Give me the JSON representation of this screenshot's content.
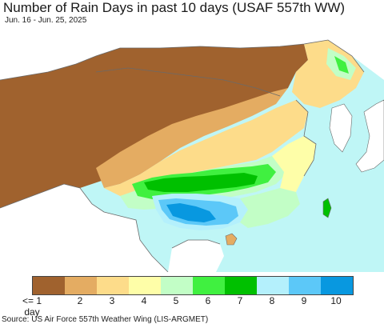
{
  "header": {
    "title": "Number of Rain Days in past 10 days (USAF 557th WW)",
    "subtitle": "Jun. 16 - Jun. 25, 2025"
  },
  "map": {
    "region": "East Asia",
    "colors": {
      "ocean": "#bff6f6",
      "outside_land": "#ffffff",
      "border": "#6a6a6a"
    }
  },
  "legend": {
    "bins": [
      {
        "label": "<= 1 day",
        "value": 1,
        "color": "#a0622e"
      },
      {
        "label": "2",
        "value": 2,
        "color": "#e4ac62"
      },
      {
        "label": "3",
        "value": 3,
        "color": "#fddc8a"
      },
      {
        "label": "4",
        "value": 4,
        "color": "#fefea8"
      },
      {
        "label": "5",
        "value": 5,
        "color": "#c2fec6"
      },
      {
        "label": "6",
        "value": 6,
        "color": "#40f040"
      },
      {
        "label": "7",
        "value": 7,
        "color": "#00c000"
      },
      {
        "label": "8",
        "value": 8,
        "color": "#b4f0fc"
      },
      {
        "label": "9",
        "value": 9,
        "color": "#5cc8f8"
      },
      {
        "label": "10",
        "value": 10,
        "color": "#0898e0"
      }
    ]
  },
  "footer": {
    "source": "Source: US Air Force 557th Weather Wing (LIS-ARGMET)"
  }
}
